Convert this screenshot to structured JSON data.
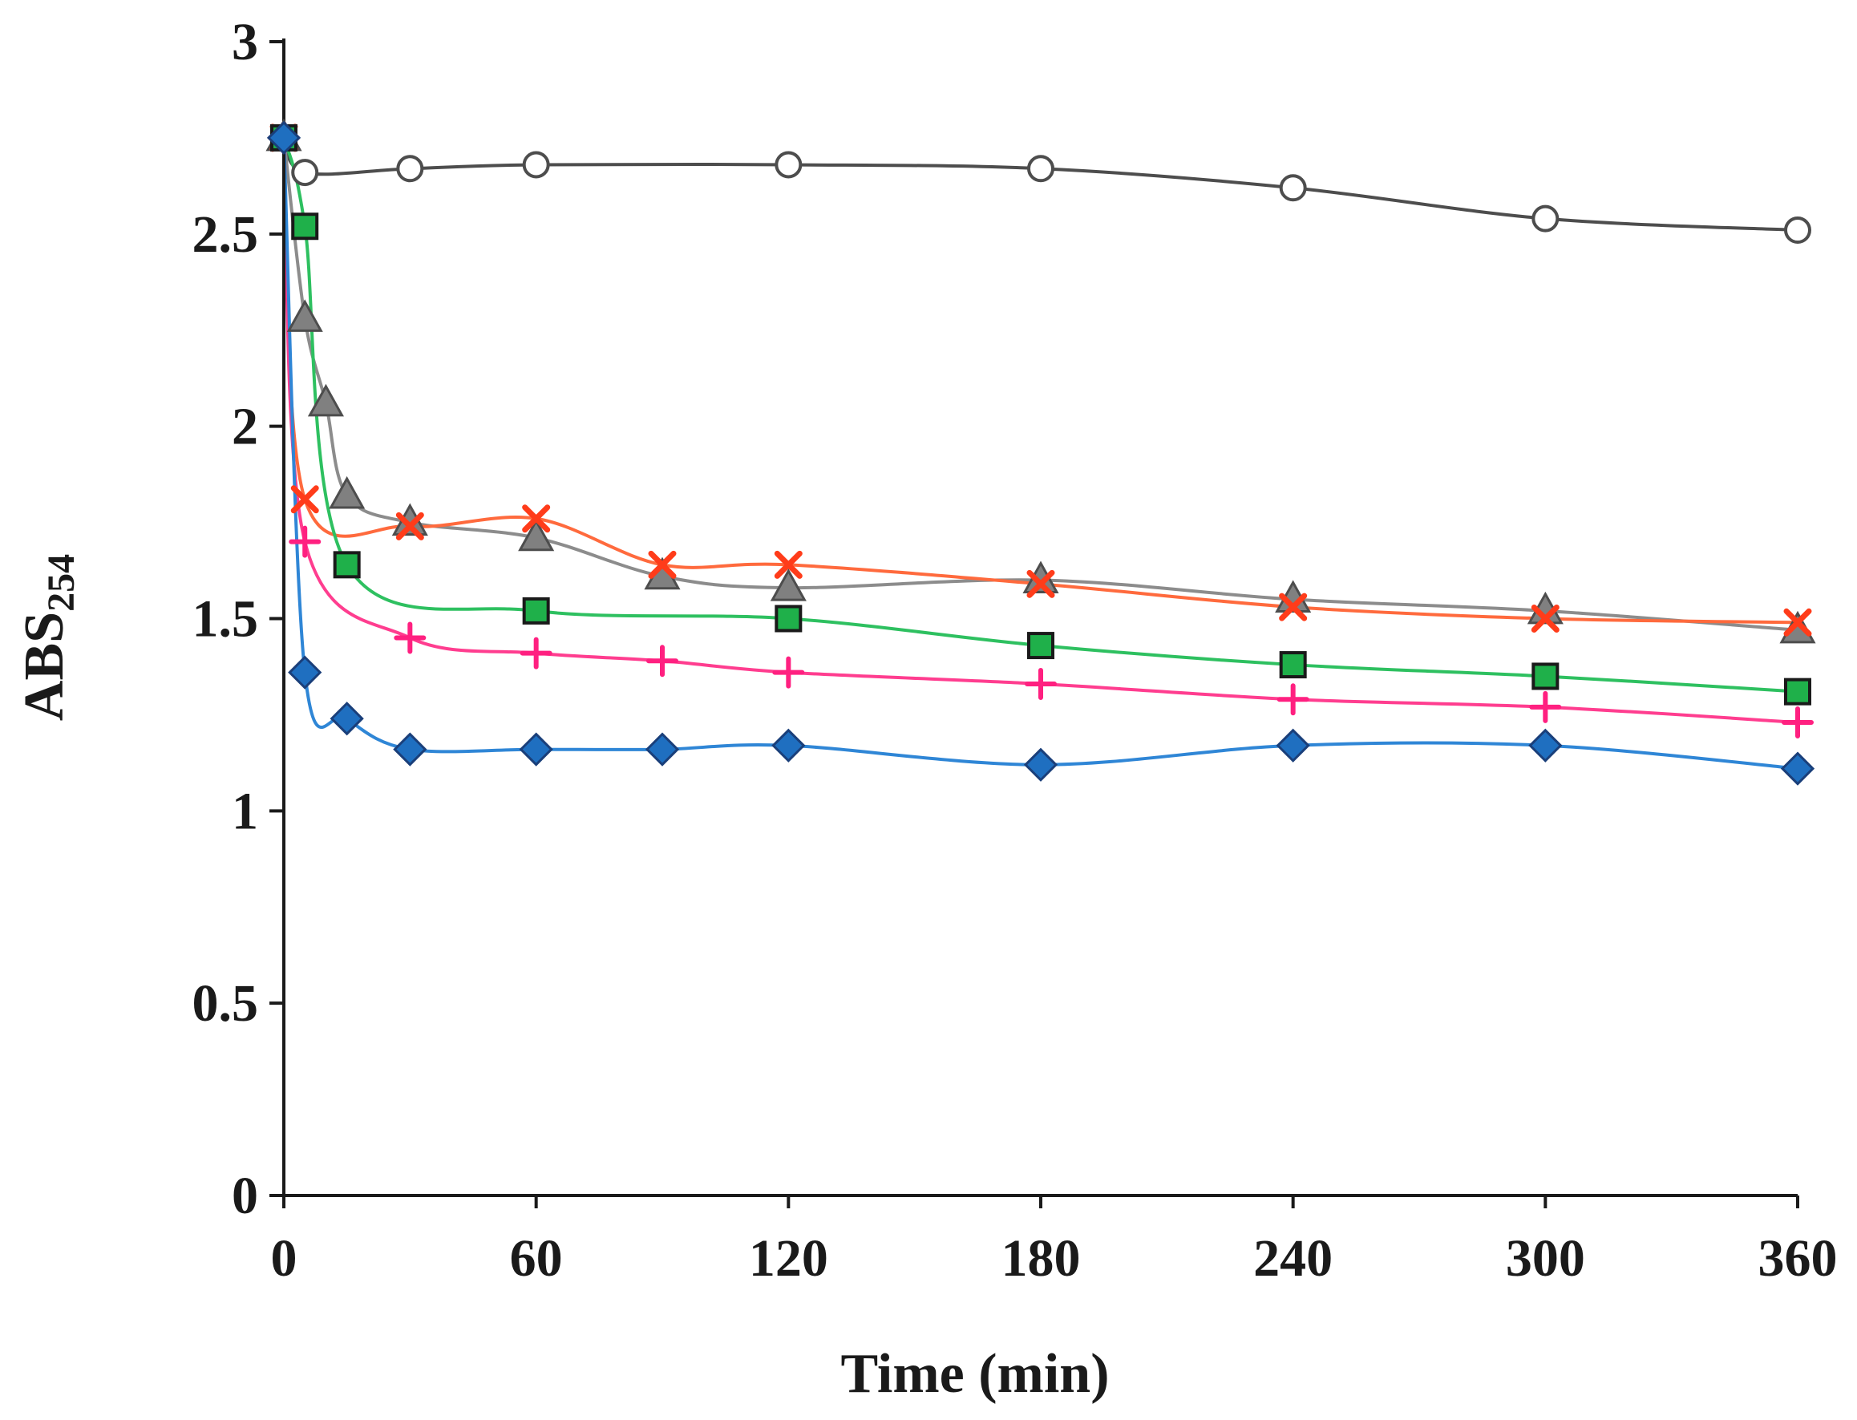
{
  "chart_data": {
    "type": "line",
    "xlabel": "Time (min)",
    "ylabel": "ABS",
    "ylabel_sub": "254",
    "xlim": [
      0,
      360
    ],
    "ylim": [
      0,
      3
    ],
    "xticks": [
      0,
      60,
      120,
      180,
      240,
      300,
      360
    ],
    "xtick_labels": [
      "0",
      "60",
      "120",
      "180",
      "240",
      "300",
      "360"
    ],
    "yticks": [
      0,
      0.5,
      1,
      1.5,
      2,
      2.5,
      3
    ],
    "ytick_labels": [
      "0",
      "0.5",
      "1",
      "1.5",
      "2",
      "2.5",
      "3"
    ],
    "grid": false,
    "legend": "none",
    "series": [
      {
        "marker": "circle-open",
        "line_color": "#4d4d4d",
        "marker_fill": "#ffffff",
        "marker_stroke": "#4d4d4d",
        "points": [
          [
            0,
            2.75
          ],
          [
            5,
            2.66
          ],
          [
            30,
            2.67
          ],
          [
            60,
            2.68
          ],
          [
            120,
            2.68
          ],
          [
            180,
            2.67
          ],
          [
            240,
            2.62
          ],
          [
            300,
            2.54
          ],
          [
            360,
            2.51
          ]
        ]
      },
      {
        "marker": "triangle",
        "line_color": "#8c8c8c",
        "marker_fill": "#808080",
        "marker_stroke": "#4d4d4d",
        "points": [
          [
            0,
            2.75
          ],
          [
            5,
            2.28
          ],
          [
            10,
            2.06
          ],
          [
            15,
            1.82
          ],
          [
            30,
            1.75
          ],
          [
            60,
            1.71
          ],
          [
            90,
            1.61
          ],
          [
            120,
            1.58
          ],
          [
            180,
            1.6
          ],
          [
            240,
            1.55
          ],
          [
            300,
            1.52
          ],
          [
            360,
            1.47
          ]
        ]
      },
      {
        "marker": "x",
        "line_color": "#ff6a3d",
        "marker_fill": "#ff3c1a",
        "marker_stroke": "#ff3c1a",
        "points": [
          [
            0,
            2.75
          ],
          [
            5,
            1.81
          ],
          [
            30,
            1.74
          ],
          [
            60,
            1.76
          ],
          [
            90,
            1.64
          ],
          [
            120,
            1.64
          ],
          [
            180,
            1.59
          ],
          [
            240,
            1.53
          ],
          [
            300,
            1.5
          ],
          [
            360,
            1.49
          ]
        ]
      },
      {
        "marker": "square",
        "line_color": "#2ec060",
        "marker_fill": "#1fb04a",
        "marker_stroke": "#1a1a1a",
        "points": [
          [
            0,
            2.75
          ],
          [
            5,
            2.52
          ],
          [
            15,
            1.64
          ],
          [
            60,
            1.52
          ],
          [
            120,
            1.5
          ],
          [
            180,
            1.43
          ],
          [
            240,
            1.38
          ],
          [
            300,
            1.35
          ],
          [
            360,
            1.31
          ]
        ]
      },
      {
        "marker": "plus",
        "line_color": "#ff3d8f",
        "marker_fill": "#ff2080",
        "marker_stroke": "#ff2080",
        "points": [
          [
            0,
            2.75
          ],
          [
            5,
            1.7
          ],
          [
            30,
            1.45
          ],
          [
            60,
            1.41
          ],
          [
            90,
            1.39
          ],
          [
            120,
            1.36
          ],
          [
            180,
            1.33
          ],
          [
            240,
            1.29
          ],
          [
            300,
            1.27
          ],
          [
            360,
            1.23
          ]
        ]
      },
      {
        "marker": "diamond",
        "line_color": "#2f86d6",
        "marker_fill": "#1f6fc0",
        "marker_stroke": "#1a3f7a",
        "points": [
          [
            0,
            2.75
          ],
          [
            5,
            1.36
          ],
          [
            15,
            1.24
          ],
          [
            30,
            1.16
          ],
          [
            60,
            1.16
          ],
          [
            90,
            1.16
          ],
          [
            120,
            1.17
          ],
          [
            180,
            1.12
          ],
          [
            240,
            1.17
          ],
          [
            300,
            1.17
          ],
          [
            360,
            1.11
          ]
        ]
      }
    ]
  }
}
